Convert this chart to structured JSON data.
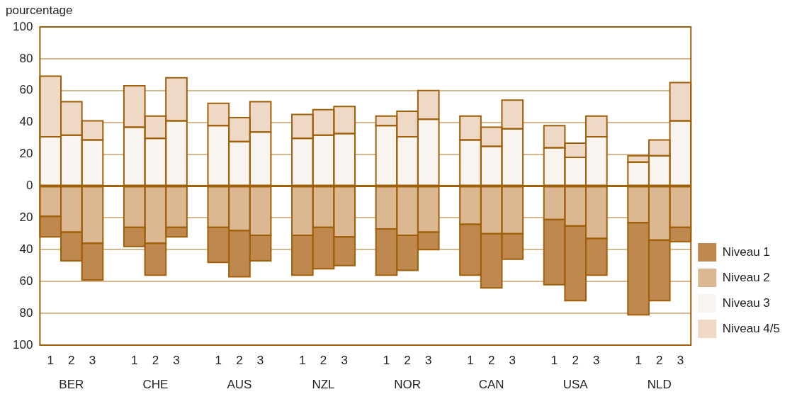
{
  "chart_data": {
    "type": "bar",
    "stacked": true,
    "ylabel": "pourcentage",
    "categories": [
      "1",
      "2",
      "3",
      "1",
      "2",
      "3",
      "1",
      "2",
      "3",
      "1",
      "2",
      "3",
      "1",
      "2",
      "3",
      "1",
      "2",
      "3",
      "1",
      "2",
      "3",
      "1",
      "2",
      "3"
    ],
    "annotations": [
      "BER",
      "CHE",
      "AUS",
      "NZL",
      "NOR",
      "CAN",
      "USA",
      "NLD"
    ],
    "series": [
      {
        "name": "Niveau 2",
        "color": "#dbb892",
        "values": [
          -19,
          -29,
          -36,
          -26,
          -36,
          -26,
          -26,
          -28,
          -31,
          -31,
          -26,
          -32,
          -27,
          -31,
          -29,
          -24,
          -30,
          -30,
          -21,
          -25,
          -33,
          -23,
          -34,
          -26
        ]
      },
      {
        "name": "Niveau 1",
        "color": "#be884e",
        "values": [
          -13,
          -18,
          -23,
          -12,
          -20,
          -6,
          -22,
          -29,
          -16,
          -25,
          -26,
          -18,
          -29,
          -22,
          -11,
          -32,
          -34,
          -16,
          -41,
          -47,
          -23,
          -58,
          -38,
          -9
        ]
      },
      {
        "name": "Niveau 3",
        "color": "#faf4f0",
        "values": [
          31,
          32,
          29,
          37,
          30,
          41,
          38,
          28,
          34,
          30,
          32,
          33,
          38,
          31,
          42,
          29,
          25,
          36,
          24,
          18,
          31,
          15,
          19,
          41
        ]
      },
      {
        "name": "Niveau 4/5",
        "color": "#eed9c6",
        "values": [
          38,
          21,
          12,
          26,
          14,
          27,
          14,
          15,
          19,
          15,
          16,
          17,
          6,
          16,
          18,
          15,
          12,
          18,
          14,
          9,
          13,
          4,
          10,
          24
        ]
      }
    ],
    "ylim": [
      -100,
      100
    ],
    "yticks": [
      {
        "value": -100,
        "label": "100"
      },
      {
        "value": -80,
        "label": "80"
      },
      {
        "value": -60,
        "label": "60"
      },
      {
        "value": -40,
        "label": "40"
      },
      {
        "value": -20,
        "label": "20"
      },
      0,
      20,
      40,
      60,
      80,
      100
    ],
    "ref_lines": [
      {
        "axis": "y",
        "value": 0,
        "color": "#a0600a"
      }
    ],
    "grid": "y",
    "legend": "bottom right"
  }
}
